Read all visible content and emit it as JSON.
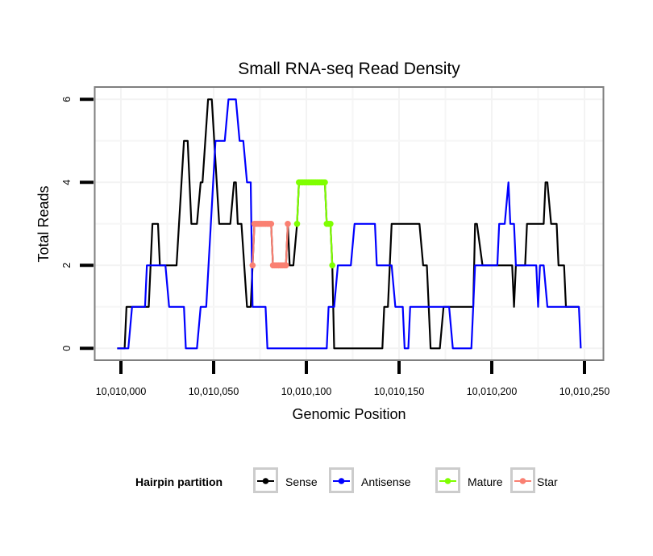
{
  "chart_data": {
    "type": "line",
    "title": "Small RNA-seq Read Density",
    "xlabel": "Genomic Position",
    "ylabel": "Total Reads",
    "x_offset": 10010000,
    "xlim": [
      10009986,
      10010262
    ],
    "ylim": [
      -0.3,
      6.3
    ],
    "x_ticks": [
      10010000,
      10010050,
      10010100,
      10010150,
      10010200,
      10010250
    ],
    "x_tick_labels": [
      "10,010,000",
      "10,010,050",
      "10,010,100",
      "10,010,150",
      "10,010,200",
      "10,010,250"
    ],
    "y_ticks": [
      0,
      2,
      4,
      6
    ],
    "y_tick_labels": [
      "0",
      "2",
      "4",
      "6"
    ],
    "grid": true,
    "legend": {
      "title": "Hairpin partition",
      "position": "bottom",
      "entries": [
        "Sense",
        "Antisense",
        "Mature",
        "Star"
      ]
    },
    "series": [
      {
        "name": "Sense",
        "color": "#000000",
        "markers": false,
        "points": [
          [
            -2,
            0
          ],
          [
            2,
            0
          ],
          [
            3,
            1
          ],
          [
            15,
            1
          ],
          [
            17,
            3
          ],
          [
            20,
            3
          ],
          [
            21,
            2
          ],
          [
            30,
            2
          ],
          [
            34,
            5
          ],
          [
            36,
            5
          ],
          [
            38,
            3
          ],
          [
            41,
            3
          ],
          [
            43,
            4
          ],
          [
            44,
            4
          ],
          [
            47,
            6
          ],
          [
            49,
            6
          ],
          [
            53,
            3
          ],
          [
            59,
            3
          ],
          [
            61,
            4
          ],
          [
            62,
            4
          ],
          [
            63,
            3
          ],
          [
            65,
            3
          ],
          [
            68,
            1
          ],
          [
            70,
            1
          ],
          [
            71,
            2
          ],
          [
            72,
            3
          ],
          [
            81,
            3
          ],
          [
            82,
            2
          ],
          [
            89,
            2
          ],
          [
            90,
            3
          ],
          [
            91,
            2
          ],
          [
            93,
            2
          ],
          [
            95,
            3
          ],
          [
            96,
            4
          ],
          [
            110,
            4
          ],
          [
            111,
            3
          ],
          [
            113,
            3
          ],
          [
            114,
            2
          ],
          [
            115,
            0
          ],
          [
            141,
            0
          ],
          [
            142,
            1
          ],
          [
            144,
            1
          ],
          [
            146,
            3
          ],
          [
            161,
            3
          ],
          [
            163,
            2
          ],
          [
            165,
            2
          ],
          [
            167,
            0
          ],
          [
            172,
            0
          ],
          [
            174,
            1
          ],
          [
            190,
            1
          ],
          [
            191,
            3
          ],
          [
            192,
            3
          ],
          [
            195,
            2
          ],
          [
            211,
            2
          ],
          [
            212,
            1
          ],
          [
            213,
            2
          ],
          [
            218,
            2
          ],
          [
            219,
            3
          ],
          [
            228,
            3
          ],
          [
            229,
            4
          ],
          [
            230,
            4
          ],
          [
            232,
            3
          ],
          [
            235,
            3
          ],
          [
            236,
            2
          ],
          [
            239,
            2
          ],
          [
            240,
            1
          ],
          [
            247,
            1
          ]
        ]
      },
      {
        "name": "Antisense",
        "color": "#0000ff",
        "markers": false,
        "points": [
          [
            -2,
            0
          ],
          [
            4,
            0
          ],
          [
            6,
            1
          ],
          [
            13,
            1
          ],
          [
            14,
            2
          ],
          [
            24,
            2
          ],
          [
            26,
            1
          ],
          [
            34,
            1
          ],
          [
            35,
            0
          ],
          [
            41,
            0
          ],
          [
            43,
            1
          ],
          [
            46,
            1
          ],
          [
            51,
            5
          ],
          [
            56,
            5
          ],
          [
            58,
            6
          ],
          [
            62,
            6
          ],
          [
            64,
            5
          ],
          [
            66,
            5
          ],
          [
            68,
            4
          ],
          [
            70,
            4
          ],
          [
            71,
            1
          ],
          [
            78,
            1
          ],
          [
            79,
            0
          ],
          [
            111,
            0
          ],
          [
            112,
            1
          ],
          [
            115,
            1
          ],
          [
            117,
            2
          ],
          [
            124,
            2
          ],
          [
            126,
            3
          ],
          [
            137,
            3
          ],
          [
            138,
            2
          ],
          [
            146,
            2
          ],
          [
            148,
            1
          ],
          [
            152,
            1
          ],
          [
            153,
            0
          ],
          [
            155,
            0
          ],
          [
            156,
            1
          ],
          [
            177,
            1
          ],
          [
            179,
            0
          ],
          [
            189,
            0
          ],
          [
            191,
            2
          ],
          [
            203,
            2
          ],
          [
            204,
            3
          ],
          [
            207,
            3
          ],
          [
            209,
            4
          ],
          [
            210,
            3
          ],
          [
            212,
            3
          ],
          [
            213,
            2
          ],
          [
            224,
            2
          ],
          [
            225,
            1
          ],
          [
            226,
            2
          ],
          [
            228,
            2
          ],
          [
            230,
            1
          ],
          [
            247,
            1
          ],
          [
            248,
            0
          ]
        ]
      },
      {
        "name": "Mature",
        "color": "#7fff00",
        "markers": true,
        "points": [
          [
            95,
            3
          ],
          [
            96,
            4
          ],
          [
            97,
            4
          ],
          [
            98,
            4
          ],
          [
            99,
            4
          ],
          [
            100,
            4
          ],
          [
            101,
            4
          ],
          [
            102,
            4
          ],
          [
            103,
            4
          ],
          [
            104,
            4
          ],
          [
            105,
            4
          ],
          [
            106,
            4
          ],
          [
            107,
            4
          ],
          [
            108,
            4
          ],
          [
            109,
            4
          ],
          [
            110,
            4
          ],
          [
            111,
            3
          ],
          [
            112,
            3
          ],
          [
            113,
            3
          ],
          [
            114,
            2
          ]
        ]
      },
      {
        "name": "Star",
        "color": "#fa8072",
        "markers": true,
        "points": [
          [
            71,
            2
          ],
          [
            72,
            3
          ],
          [
            73,
            3
          ],
          [
            74,
            3
          ],
          [
            75,
            3
          ],
          [
            76,
            3
          ],
          [
            77,
            3
          ],
          [
            78,
            3
          ],
          [
            79,
            3
          ],
          [
            80,
            3
          ],
          [
            81,
            3
          ],
          [
            82,
            2
          ],
          [
            83,
            2
          ],
          [
            84,
            2
          ],
          [
            85,
            2
          ],
          [
            86,
            2
          ],
          [
            87,
            2
          ],
          [
            88,
            2
          ],
          [
            89,
            2
          ],
          [
            90,
            3
          ]
        ]
      }
    ]
  }
}
